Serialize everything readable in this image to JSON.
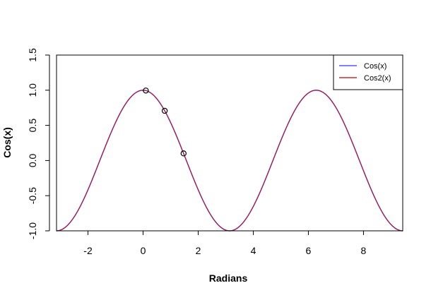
{
  "chart_data": {
    "type": "line",
    "title": "",
    "xlabel": "Radians",
    "ylabel": "Cos(x)",
    "xlim": [
      -3.1416,
      9.4248
    ],
    "ylim": [
      -1.0,
      1.5
    ],
    "xticks": [
      -2,
      0,
      2,
      4,
      6,
      8
    ],
    "xtick_labels": [
      "-2",
      "0",
      "2",
      "4",
      "6",
      "8"
    ],
    "yticks": [
      -1.0,
      -0.5,
      0.0,
      0.5,
      1.0,
      1.5
    ],
    "ytick_labels": [
      "-1.0",
      "-0.5",
      "0.0",
      "0.5",
      "1.0",
      "1.5"
    ],
    "grid": false,
    "legend_position": "top-right",
    "series": [
      {
        "name": "Cos(x)",
        "color": "#3333ff",
        "x": [
          -3.1416,
          -2.5,
          -2.0,
          -1.5,
          -1.0,
          -0.5,
          0.0,
          0.5,
          1.0,
          1.5,
          2.0,
          2.5,
          3.1416,
          4.0,
          5.0,
          6.2832,
          7.0,
          8.0,
          9.0,
          9.4248
        ],
        "y": [
          -1.0,
          -0.801,
          -0.416,
          0.071,
          0.54,
          0.878,
          1.0,
          0.878,
          0.54,
          0.071,
          -0.416,
          -0.801,
          -1.0,
          -0.654,
          0.284,
          1.0,
          0.754,
          -0.146,
          -0.911,
          -1.0
        ]
      },
      {
        "name": "Cos2(x)",
        "color": "#cc0000",
        "x": [
          -3.1416,
          -2.5,
          -2.0,
          -1.5,
          -1.0,
          -0.5,
          0.0,
          0.5,
          1.0,
          1.5,
          2.0,
          2.5,
          3.1416,
          4.0,
          5.0,
          6.2832,
          7.0,
          8.0,
          9.0,
          9.4248
        ],
        "y": [
          -1.0,
          -0.801,
          -0.416,
          0.071,
          0.54,
          0.878,
          1.0,
          0.878,
          0.54,
          0.071,
          -0.416,
          -0.801,
          -1.0,
          -0.654,
          0.284,
          1.0,
          0.754,
          -0.146,
          -0.911,
          -1.0
        ]
      },
      {
        "name": "",
        "kind": "points",
        "marker": "open-circle",
        "color": "#000000",
        "x": [
          0.1,
          0.785,
          1.47
        ],
        "y": [
          0.995,
          0.707,
          0.101
        ]
      }
    ]
  }
}
